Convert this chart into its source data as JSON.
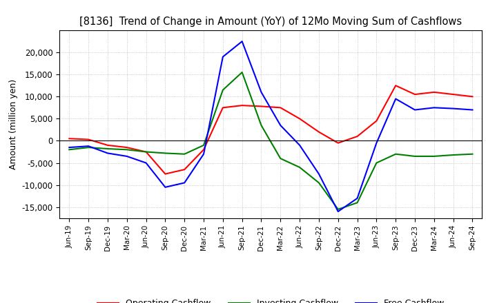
{
  "title": "[8136]  Trend of Change in Amount (YoY) of 12Mo Moving Sum of Cashflows",
  "ylabel": "Amount (million yen)",
  "x_labels": [
    "Jun-19",
    "Sep-19",
    "Dec-19",
    "Mar-20",
    "Jun-20",
    "Sep-20",
    "Dec-20",
    "Mar-21",
    "Jun-21",
    "Sep-21",
    "Dec-21",
    "Mar-22",
    "Jun-22",
    "Sep-22",
    "Dec-22",
    "Mar-23",
    "Jun-23",
    "Sep-23",
    "Dec-23",
    "Mar-24",
    "Jun-24",
    "Sep-24"
  ],
  "operating": [
    500,
    300,
    -1000,
    -1500,
    -2500,
    -7500,
    -6500,
    -2000,
    7500,
    8000,
    7800,
    7500,
    5000,
    2000,
    -500,
    1000,
    4500,
    12500,
    10500,
    11000,
    10500,
    10000
  ],
  "investing": [
    -2000,
    -1500,
    -1800,
    -2000,
    -2500,
    -2800,
    -3000,
    -1000,
    11500,
    15500,
    3500,
    -4000,
    -6000,
    -9500,
    -15500,
    -14000,
    -5000,
    -3000,
    -3500,
    -3500,
    -3200,
    -3000
  ],
  "free": [
    -1500,
    -1200,
    -2800,
    -3500,
    -5000,
    -10500,
    -9500,
    -3000,
    19000,
    22500,
    11000,
    3500,
    -1000,
    -7500,
    -16000,
    -13000,
    -500,
    9500,
    7000,
    7500,
    7300,
    7000
  ],
  "operating_color": "#ff0000",
  "investing_color": "#008000",
  "free_color": "#0000ff",
  "ylim": [
    -17500,
    25000
  ],
  "yticks": [
    -15000,
    -10000,
    -5000,
    0,
    5000,
    10000,
    15000,
    20000
  ],
  "background_color": "#ffffff",
  "grid_color": "#aaaaaa"
}
